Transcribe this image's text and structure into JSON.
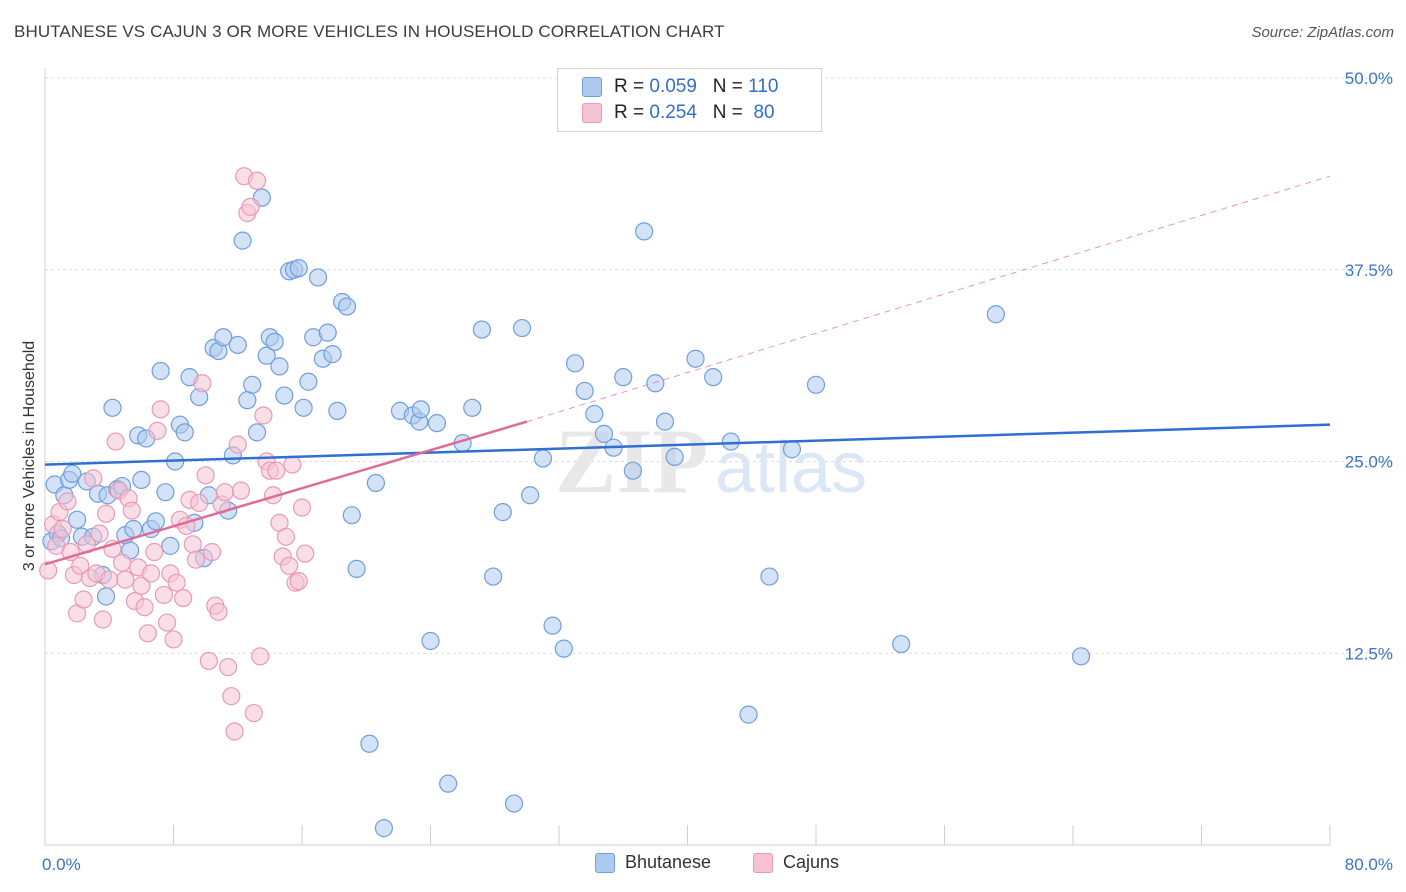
{
  "title": "BHUTANESE VS CAJUN 3 OR MORE VEHICLES IN HOUSEHOLD CORRELATION CHART",
  "source": "Source: ZipAtlas.com",
  "watermark": {
    "zip": "ZIP",
    "atlas": "atlas"
  },
  "legend": {
    "rows": [
      {
        "r_label": "R =",
        "r_value": "0.059",
        "n_label": "N =",
        "n_value": "110"
      },
      {
        "r_label": "R =",
        "r_value": "0.254",
        "n_label": "N =",
        "n_value": " 80"
      }
    ]
  },
  "bottom_legend": {
    "series1": "Bhutanese",
    "series2": "Cajuns"
  },
  "chart_data": {
    "type": "scatter",
    "title": "BHUTANESE VS CAJUN 3 OR MORE VEHICLES IN HOUSEHOLD CORRELATION CHART",
    "xlabel": "",
    "ylabel": "3 or more Vehicles in Household",
    "xlim": [
      0,
      80
    ],
    "ylim": [
      0,
      50
    ],
    "x_tick_labels": [
      "0.0%",
      "80.0%"
    ],
    "y_tick_labels": [
      "12.5%",
      "25.0%",
      "37.5%",
      "50.0%"
    ],
    "y_ticks": [
      12.5,
      25,
      37.5,
      50
    ],
    "series": [
      {
        "name": "Bhutanese",
        "color": "#6f9fdc",
        "fill": "#aecbef",
        "trend": {
          "x0": 0,
          "y0": 24.8,
          "x1": 80,
          "y1": 27.4,
          "dashed_to": null
        },
        "points": [
          [
            0.4,
            19.8
          ],
          [
            0.6,
            23.5
          ],
          [
            0.8,
            20.3
          ],
          [
            1.0,
            20.0
          ],
          [
            1.2,
            22.8
          ],
          [
            1.5,
            23.8
          ],
          [
            1.7,
            24.2
          ],
          [
            2.0,
            21.2
          ],
          [
            2.3,
            20.1
          ],
          [
            2.6,
            23.7
          ],
          [
            3.0,
            20.1
          ],
          [
            3.3,
            22.9
          ],
          [
            3.6,
            17.6
          ],
          [
            3.8,
            16.2
          ],
          [
            3.9,
            22.8
          ],
          [
            4.2,
            28.5
          ],
          [
            4.5,
            23.2
          ],
          [
            4.8,
            23.4
          ],
          [
            5.0,
            20.2
          ],
          [
            5.3,
            19.2
          ],
          [
            5.5,
            20.6
          ],
          [
            5.8,
            26.7
          ],
          [
            6.0,
            23.8
          ],
          [
            6.3,
            26.5
          ],
          [
            6.6,
            20.6
          ],
          [
            6.9,
            21.1
          ],
          [
            7.2,
            30.9
          ],
          [
            7.5,
            23.0
          ],
          [
            7.8,
            19.5
          ],
          [
            8.1,
            25.0
          ],
          [
            8.4,
            27.4
          ],
          [
            8.7,
            26.9
          ],
          [
            9.0,
            30.5
          ],
          [
            9.3,
            21.0
          ],
          [
            9.6,
            29.2
          ],
          [
            9.9,
            18.7
          ],
          [
            10.2,
            22.8
          ],
          [
            10.5,
            32.4
          ],
          [
            10.8,
            32.2
          ],
          [
            11.1,
            33.1
          ],
          [
            11.4,
            21.8
          ],
          [
            11.7,
            25.4
          ],
          [
            12.0,
            32.6
          ],
          [
            12.3,
            39.4
          ],
          [
            12.6,
            29.0
          ],
          [
            12.9,
            30.0
          ],
          [
            13.2,
            26.9
          ],
          [
            13.5,
            42.2
          ],
          [
            13.8,
            31.9
          ],
          [
            14.0,
            33.1
          ],
          [
            14.3,
            32.8
          ],
          [
            14.6,
            31.2
          ],
          [
            14.9,
            29.3
          ],
          [
            15.2,
            37.4
          ],
          [
            15.5,
            37.5
          ],
          [
            15.8,
            37.6
          ],
          [
            16.1,
            28.5
          ],
          [
            16.4,
            30.2
          ],
          [
            16.7,
            33.1
          ],
          [
            17.0,
            37.0
          ],
          [
            17.3,
            31.7
          ],
          [
            17.6,
            33.4
          ],
          [
            17.9,
            32.0
          ],
          [
            18.2,
            28.3
          ],
          [
            18.5,
            35.4
          ],
          [
            18.8,
            35.1
          ],
          [
            19.1,
            21.5
          ],
          [
            19.4,
            18.0
          ],
          [
            20.2,
            6.6
          ],
          [
            20.6,
            23.6
          ],
          [
            21.1,
            1.1
          ],
          [
            22.1,
            28.3
          ],
          [
            22.9,
            28.0
          ],
          [
            23.3,
            27.6
          ],
          [
            24.0,
            13.3
          ],
          [
            24.4,
            27.5
          ],
          [
            25.1,
            4.0
          ],
          [
            26.0,
            26.2
          ],
          [
            26.6,
            28.5
          ],
          [
            27.2,
            33.6
          ],
          [
            27.9,
            17.5
          ],
          [
            28.5,
            21.7
          ],
          [
            29.2,
            2.7
          ],
          [
            29.7,
            33.7
          ],
          [
            30.2,
            22.8
          ],
          [
            31.0,
            25.2
          ],
          [
            31.6,
            14.3
          ],
          [
            32.3,
            12.8
          ],
          [
            33.0,
            31.4
          ],
          [
            33.6,
            29.6
          ],
          [
            34.2,
            28.1
          ],
          [
            34.8,
            26.8
          ],
          [
            35.4,
            25.9
          ],
          [
            36.0,
            30.5
          ],
          [
            36.6,
            24.4
          ],
          [
            37.3,
            40.0
          ],
          [
            38.0,
            30.1
          ],
          [
            38.6,
            27.6
          ],
          [
            39.2,
            25.3
          ],
          [
            40.5,
            31.7
          ],
          [
            41.6,
            30.5
          ],
          [
            42.7,
            26.3
          ],
          [
            43.8,
            8.5
          ],
          [
            45.1,
            17.5
          ],
          [
            46.5,
            25.8
          ],
          [
            48.0,
            30.0
          ],
          [
            53.3,
            13.1
          ],
          [
            59.2,
            34.6
          ],
          [
            64.5,
            12.3
          ],
          [
            23.4,
            28.4
          ]
        ]
      },
      {
        "name": "Cajuns",
        "color": "#e89ab6",
        "fill": "#f6c3d4",
        "trend": {
          "x0": 0,
          "y0": 18.3,
          "x1": 30,
          "y1": 27.6,
          "dashed_to": {
            "x": 80,
            "y": 43.6
          }
        },
        "points": [
          [
            0.2,
            17.9
          ],
          [
            0.5,
            20.9
          ],
          [
            0.7,
            19.5
          ],
          [
            0.9,
            21.7
          ],
          [
            1.1,
            20.6
          ],
          [
            1.4,
            22.4
          ],
          [
            1.6,
            19.1
          ],
          [
            1.8,
            17.6
          ],
          [
            2.0,
            15.1
          ],
          [
            2.2,
            18.2
          ],
          [
            2.4,
            16.0
          ],
          [
            2.6,
            19.6
          ],
          [
            2.8,
            17.4
          ],
          [
            3.0,
            23.9
          ],
          [
            3.2,
            17.7
          ],
          [
            3.4,
            20.3
          ],
          [
            3.6,
            14.7
          ],
          [
            3.8,
            21.6
          ],
          [
            4.0,
            17.3
          ],
          [
            4.2,
            19.3
          ],
          [
            4.4,
            26.3
          ],
          [
            4.6,
            23.1
          ],
          [
            4.8,
            18.4
          ],
          [
            5.0,
            17.3
          ],
          [
            5.2,
            22.6
          ],
          [
            5.4,
            21.8
          ],
          [
            5.6,
            15.9
          ],
          [
            5.8,
            18.1
          ],
          [
            6.0,
            16.9
          ],
          [
            6.2,
            15.5
          ],
          [
            6.4,
            13.8
          ],
          [
            6.6,
            17.7
          ],
          [
            6.8,
            19.1
          ],
          [
            7.0,
            27.0
          ],
          [
            7.2,
            28.4
          ],
          [
            7.4,
            16.3
          ],
          [
            7.6,
            14.5
          ],
          [
            7.8,
            17.7
          ],
          [
            8.0,
            13.4
          ],
          [
            8.2,
            17.1
          ],
          [
            8.4,
            21.2
          ],
          [
            8.6,
            16.1
          ],
          [
            8.8,
            20.8
          ],
          [
            9.0,
            22.5
          ],
          [
            9.2,
            19.6
          ],
          [
            9.4,
            18.6
          ],
          [
            9.6,
            22.3
          ],
          [
            9.8,
            30.1
          ],
          [
            10.0,
            24.1
          ],
          [
            10.2,
            12.0
          ],
          [
            10.4,
            19.1
          ],
          [
            10.6,
            15.6
          ],
          [
            10.8,
            15.2
          ],
          [
            11.0,
            22.2
          ],
          [
            11.2,
            23.0
          ],
          [
            11.4,
            11.6
          ],
          [
            11.6,
            9.7
          ],
          [
            11.8,
            7.4
          ],
          [
            12.0,
            26.1
          ],
          [
            12.2,
            23.1
          ],
          [
            12.4,
            43.6
          ],
          [
            12.6,
            41.2
          ],
          [
            12.8,
            41.6
          ],
          [
            13.0,
            8.6
          ],
          [
            13.2,
            43.3
          ],
          [
            13.4,
            12.3
          ],
          [
            13.6,
            28.0
          ],
          [
            13.8,
            25.0
          ],
          [
            14.0,
            24.4
          ],
          [
            14.2,
            22.8
          ],
          [
            14.4,
            24.4
          ],
          [
            14.6,
            21.0
          ],
          [
            14.8,
            18.8
          ],
          [
            15.0,
            20.1
          ],
          [
            15.2,
            18.2
          ],
          [
            15.4,
            24.8
          ],
          [
            15.6,
            17.1
          ],
          [
            15.8,
            17.2
          ],
          [
            16.0,
            22.0
          ],
          [
            16.2,
            19.0
          ]
        ]
      }
    ]
  }
}
